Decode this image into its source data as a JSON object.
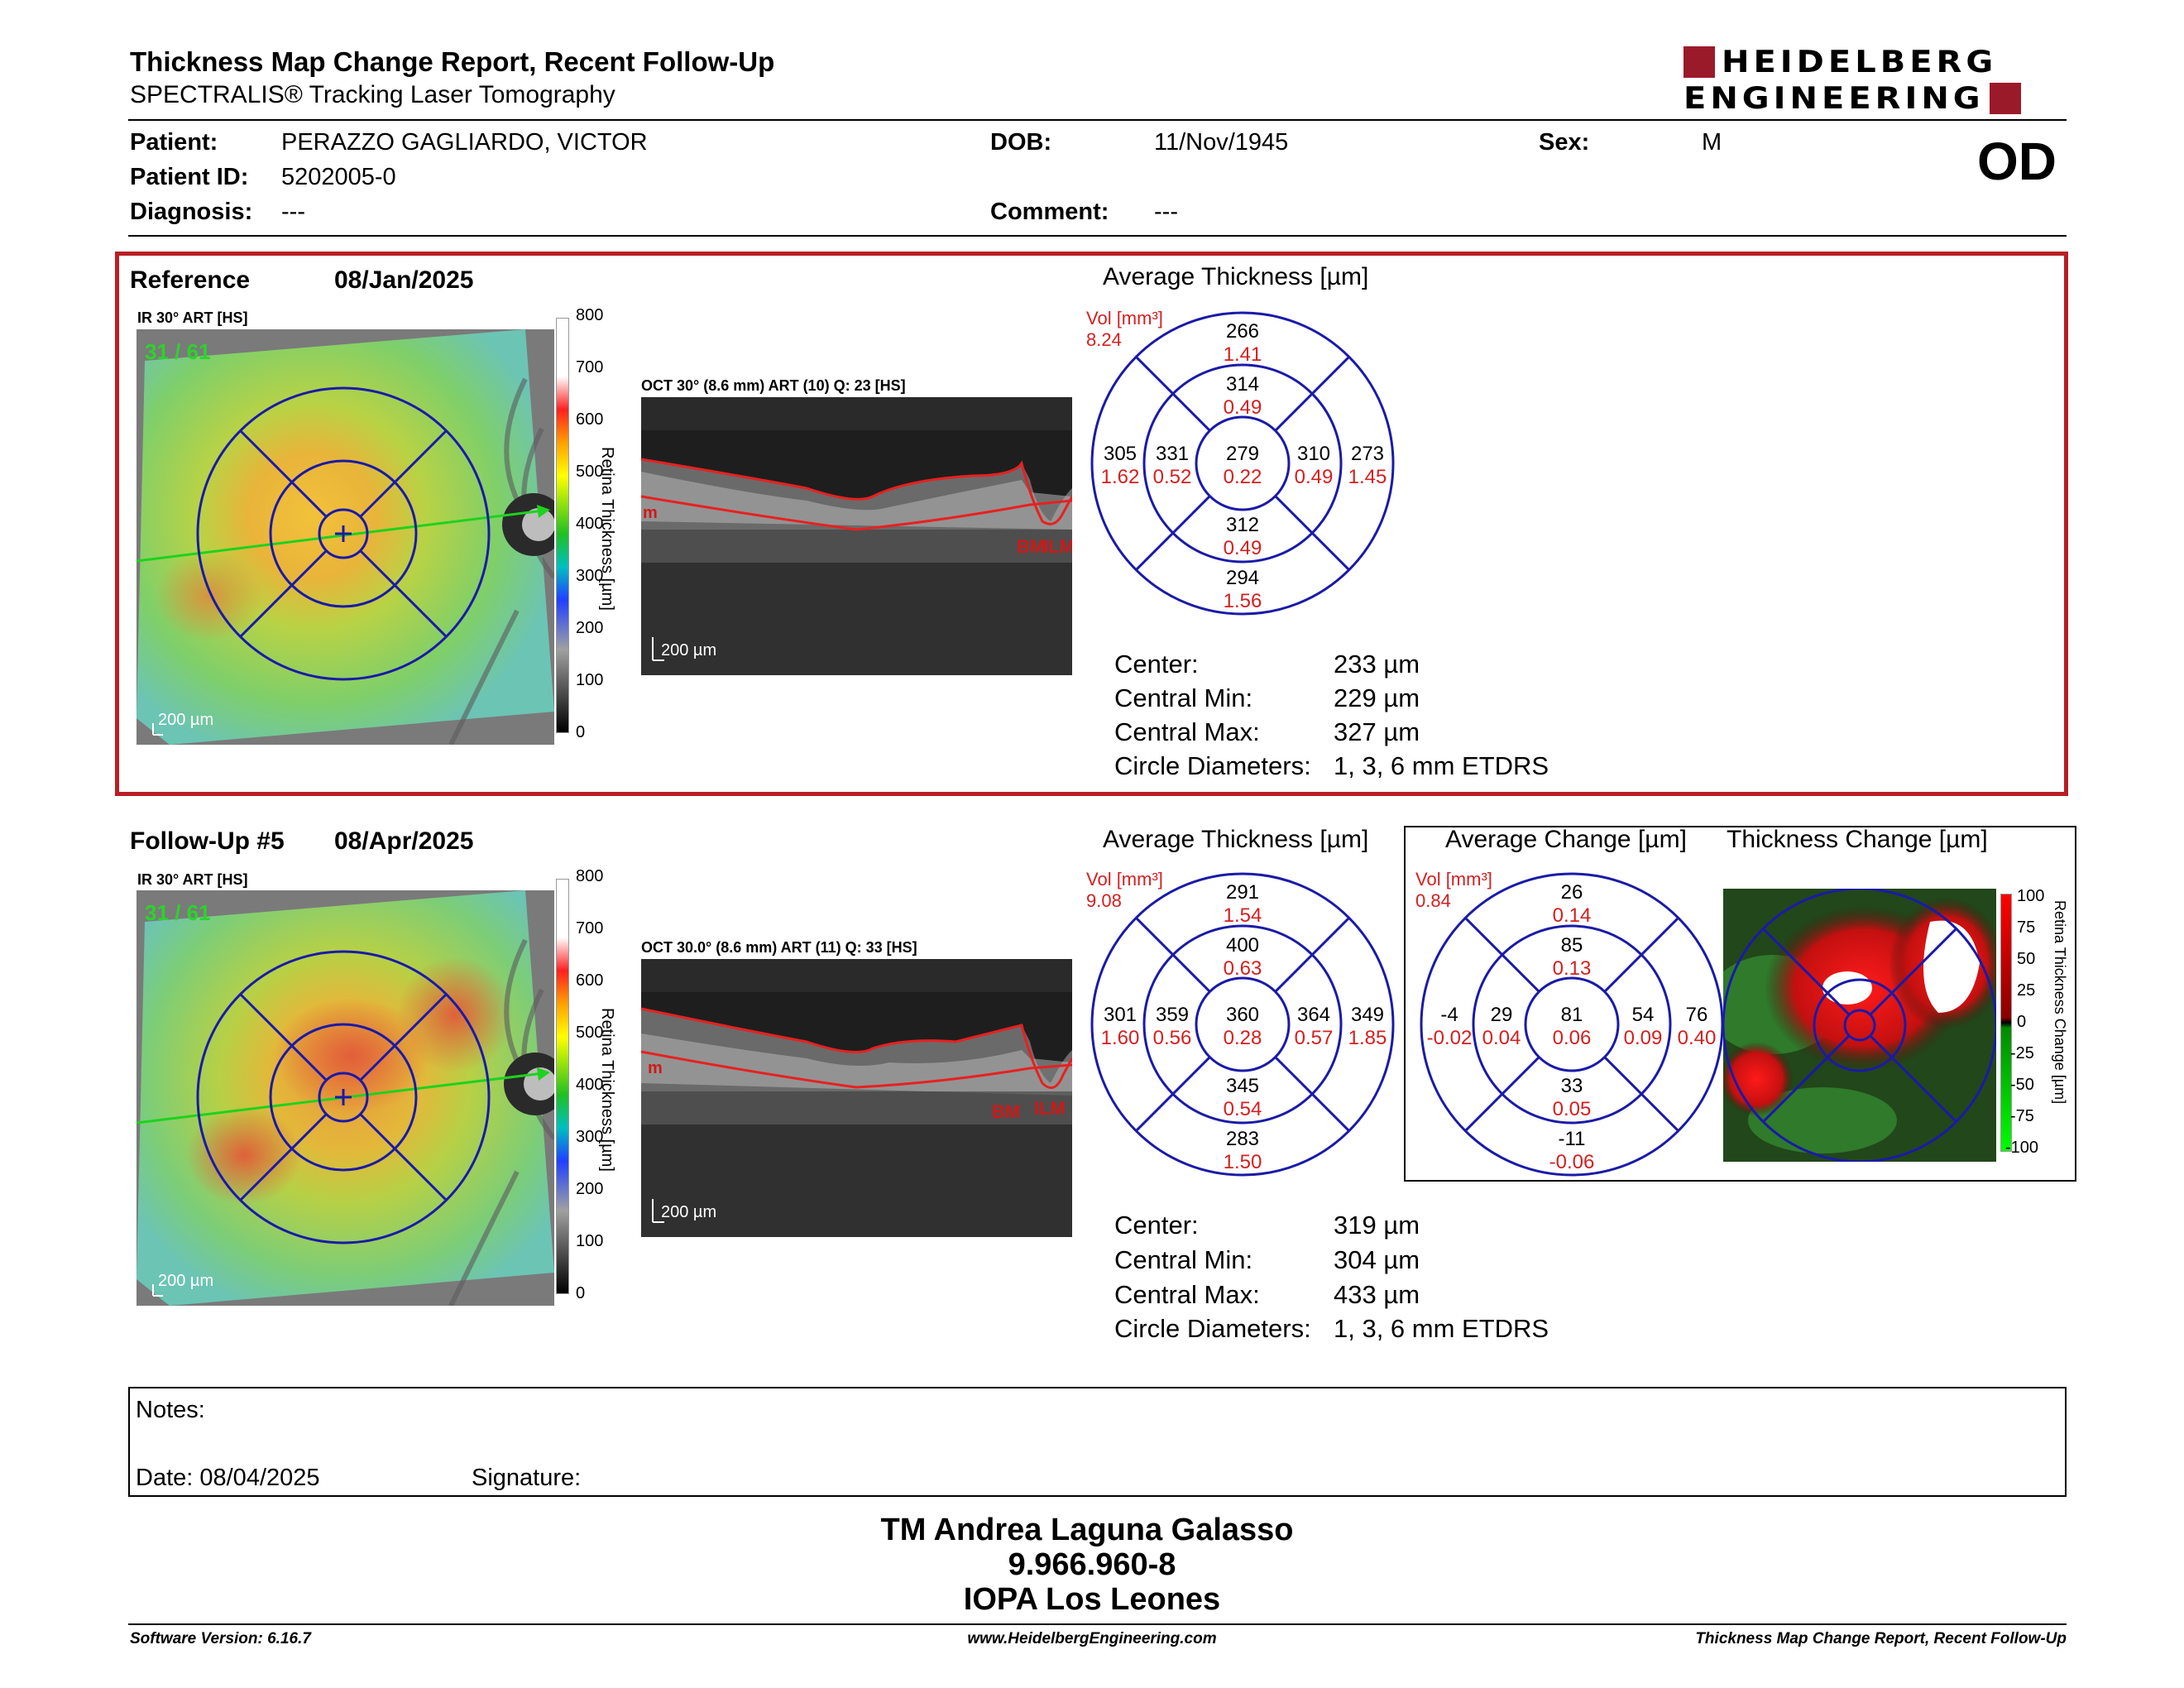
{
  "header": {
    "title": "Thickness Map Change Report, Recent Follow-Up",
    "subtitle": "SPECTRALIS® Tracking Laser Tomography",
    "logo_line1": "HEIDELBERG",
    "logo_line2": "ENGINEERING",
    "eye": "OD"
  },
  "patient": {
    "patient_label": "Patient:",
    "patient_value": "PERAZZO GAGLIARDO, VICTOR",
    "id_label": "Patient ID:",
    "id_value": "5202005-0",
    "diagnosis_label": "Diagnosis:",
    "diagnosis_value": "---",
    "dob_label": "DOB:",
    "dob_value": "11/Nov/1945",
    "comment_label": "Comment:",
    "comment_value": "---",
    "sex_label": "Sex:",
    "sex_value": "M"
  },
  "reference": {
    "label": "Reference",
    "date": "08/Jan/2025",
    "ir_label": "IR 30° ART [HS]",
    "ir_counter": "31 / 61",
    "scale_bar": "200 µm",
    "oct_label": "OCT 30° (8.6 mm) ART (10) Q: 23 [HS]",
    "oct_scale": "200 µm",
    "oct_bm": "BM",
    "oct_ilm": "ILM",
    "oct_left_mark": "m",
    "avg_title": "Average Thickness [µm]",
    "vol_label": "Vol [mm³]",
    "vol_total": "8.24",
    "etdrs": {
      "center": [
        "279",
        "0.22"
      ],
      "inner_sup": [
        "314",
        "0.49"
      ],
      "inner_inf": [
        "312",
        "0.49"
      ],
      "inner_left": [
        "331",
        "0.52"
      ],
      "inner_right": [
        "310",
        "0.49"
      ],
      "outer_sup": [
        "266",
        "1.41"
      ],
      "outer_inf": [
        "294",
        "1.56"
      ],
      "outer_left": [
        "305",
        "1.62"
      ],
      "outer_right": [
        "273",
        "1.45"
      ]
    },
    "stats": [
      {
        "label": "Center:",
        "value": "233 µm"
      },
      {
        "label": "Central Min:",
        "value": "229 µm"
      },
      {
        "label": "Central Max:",
        "value": "327 µm"
      },
      {
        "label": "Circle Diameters:",
        "value": "1, 3, 6 mm ETDRS"
      }
    ]
  },
  "followup": {
    "label": "Follow-Up #5",
    "date": "08/Apr/2025",
    "ir_label": "IR 30° ART [HS]",
    "ir_counter": "31 / 61",
    "scale_bar": "200 µm",
    "oct_label": "OCT 30.0° (8.6 mm) ART (11) Q: 33 [HS]",
    "oct_scale": "200 µm",
    "oct_bm": "BM",
    "oct_ilm": "ILM",
    "oct_left_mark": "m",
    "avg_title": "Average Thickness [µm]",
    "vol_label": "Vol [mm³]",
    "vol_total": "9.08",
    "etdrs": {
      "center": [
        "360",
        "0.28"
      ],
      "inner_sup": [
        "400",
        "0.63"
      ],
      "inner_inf": [
        "345",
        "0.54"
      ],
      "inner_left": [
        "359",
        "0.56"
      ],
      "inner_right": [
        "364",
        "0.57"
      ],
      "outer_sup": [
        "291",
        "1.54"
      ],
      "outer_inf": [
        "283",
        "1.50"
      ],
      "outer_left": [
        "301",
        "1.60"
      ],
      "outer_right": [
        "349",
        "1.85"
      ]
    },
    "stats": [
      {
        "label": "Center:",
        "value": "319 µm"
      },
      {
        "label": "Central Min:",
        "value": "304 µm"
      },
      {
        "label": "Central Max:",
        "value": "433 µm"
      },
      {
        "label": "Circle Diameters:",
        "value": "1, 3, 6 mm ETDRS"
      }
    ]
  },
  "change": {
    "avg_title": "Average Change [µm]",
    "map_title": "Thickness Change [µm]",
    "vol_label": "Vol [mm³]",
    "vol_total": "0.84",
    "etdrs": {
      "center": [
        "81",
        "0.06"
      ],
      "inner_sup": [
        "85",
        "0.13"
      ],
      "inner_inf": [
        "33",
        "0.05"
      ],
      "inner_left": [
        "29",
        "0.04"
      ],
      "inner_right": [
        "54",
        "0.09"
      ],
      "outer_sup": [
        "26",
        "0.14"
      ],
      "outer_inf": [
        "-11",
        "-0.06"
      ],
      "outer_left": [
        "-4",
        "-0.02"
      ],
      "outer_right": [
        "76",
        "0.40"
      ]
    },
    "scale_label": "Retina Thickness Change [µm]",
    "scale_ticks": [
      "100",
      "75",
      "50",
      "25",
      "0",
      "-25",
      "-50",
      "-75",
      "-100"
    ]
  },
  "thickness_scale": {
    "label": "Retina Thickness [µm]",
    "ticks": [
      "800",
      "700",
      "600",
      "500",
      "400",
      "300",
      "200",
      "100",
      "0"
    ]
  },
  "notes": {
    "notes_label": "Notes:",
    "date_label": "Date: 08/04/2025",
    "signature_label": "Signature:"
  },
  "signature_block": {
    "name": "TM Andrea Laguna Galasso",
    "id": "9.966.960-8",
    "org": "IOPA Los Leones"
  },
  "footer": {
    "software": "Software Version: 6.16.7",
    "url": "www.HeidelbergEngineering.com",
    "report": "Thickness Map Change Report, Recent Follow-Up"
  },
  "colors": {
    "frame_red": "#b81f24",
    "logo_red": "#9b1a2a",
    "grid_blue": "#1a1aa8",
    "value_red": "#d42020"
  }
}
